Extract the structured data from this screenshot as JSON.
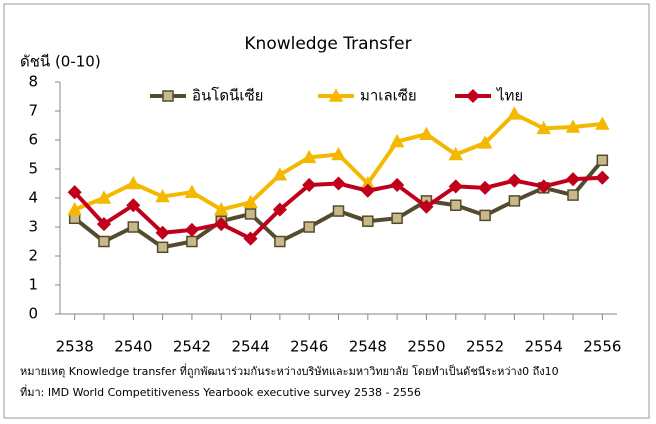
{
  "chart_data": {
    "type": "line",
    "title": "Knowledge Transfer",
    "y_label": "ดัชนี (0-10)",
    "categories": [
      "2538",
      null,
      "2540",
      null,
      "2542",
      null,
      "2544",
      null,
      "2546",
      null,
      "2548",
      null,
      "2550",
      null,
      "2552",
      null,
      "2554",
      null,
      "2556"
    ],
    "series": [
      {
        "name": "อินโดนีเซีย",
        "color": "#544b2f",
        "marker": "square",
        "marker_color": "#c8b98a",
        "values": [
          3.3,
          2.5,
          3.0,
          2.3,
          2.5,
          3.2,
          3.45,
          2.5,
          3.0,
          3.55,
          3.2,
          3.3,
          3.9,
          3.75,
          3.4,
          3.9,
          4.35,
          4.1,
          5.3
        ]
      },
      {
        "name": "มาเลเซีย",
        "color": "#f5b800",
        "marker": "triangle",
        "marker_color": "#f5b800",
        "values": [
          3.6,
          4.0,
          4.5,
          4.05,
          4.2,
          3.6,
          3.85,
          4.8,
          5.4,
          5.5,
          4.5,
          5.95,
          6.2,
          5.5,
          5.9,
          6.9,
          6.4,
          6.45,
          6.55
        ]
      },
      {
        "name": "ไทย",
        "color": "#c0001a",
        "marker": "diamond",
        "marker_color": "#c0001a",
        "values": [
          4.2,
          3.1,
          3.75,
          2.8,
          2.9,
          3.1,
          2.6,
          3.6,
          4.45,
          4.5,
          4.25,
          4.45,
          3.7,
          4.4,
          4.35,
          4.6,
          4.4,
          4.65,
          4.7
        ]
      }
    ],
    "ylim": [
      0,
      8
    ],
    "yticks": [
      0,
      1,
      2,
      3,
      4,
      5,
      6,
      7,
      8
    ],
    "grid": false,
    "notes": [
      "หมายเหตุ Knowledge transfer ที่ถูกพัฒนาร่วมกันระหว่างบริษัทและมหาวิทยาลัย โดยทำเป็นดัชนีระหว่าง0 ถึง10",
      "ที่มา: IMD World Competitiveness Yearbook executive survey 2538 - 2556"
    ]
  }
}
